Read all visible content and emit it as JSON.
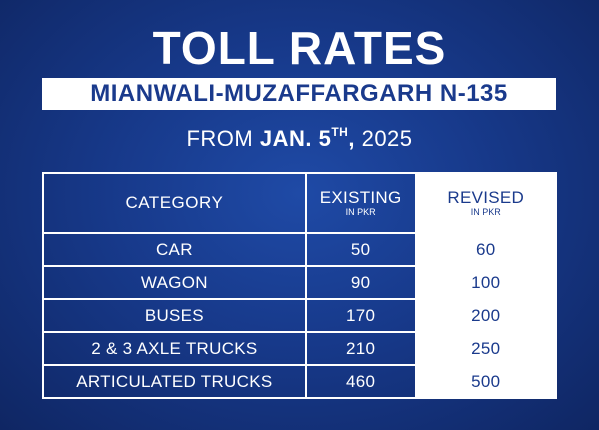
{
  "title": "TOLL RATES",
  "route": "MIANWALI-MUZAFFARGARH N-135",
  "effective": {
    "prefix": "FROM",
    "date_main": "JAN. 5",
    "date_suffix": "TH",
    "date_comma": ",",
    "year": "2025"
  },
  "table": {
    "headers": {
      "category": "CATEGORY",
      "existing": "EXISTING",
      "existing_unit": "IN PKR",
      "revised": "REVISED",
      "revised_unit": "IN PKR"
    },
    "rows": [
      {
        "category": "CAR",
        "existing": "50",
        "revised": "60"
      },
      {
        "category": "WAGON",
        "existing": "90",
        "revised": "100"
      },
      {
        "category": "BUSES",
        "existing": "170",
        "revised": "200"
      },
      {
        "category": "2 & 3 AXLE TRUCKS",
        "existing": "210",
        "revised": "250"
      },
      {
        "category": "ARTICULATED TRUCKS",
        "existing": "460",
        "revised": "500"
      }
    ]
  },
  "colors": {
    "background": "#17398a",
    "accent_text": "#1a3a8c",
    "highlight": "#ffffff"
  }
}
